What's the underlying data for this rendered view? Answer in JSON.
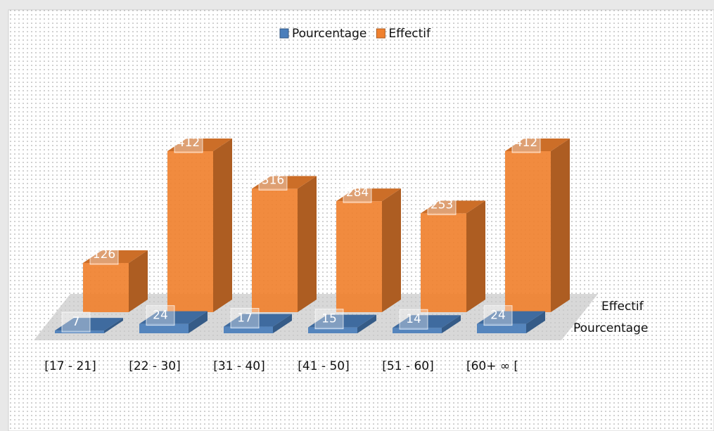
{
  "chart_data": {
    "type": "bar3d",
    "categories": [
      "[17 - 21]",
      "[22 - 30]",
      "[31 - 40]",
      "[41 - 50]",
      "[51 - 60]",
      "[60+ ∞ ["
    ],
    "series": [
      {
        "name": "Pourcentage",
        "color": "#4a7ebb",
        "values": [
          7,
          24,
          17,
          15,
          14,
          24
        ]
      },
      {
        "name": "Effectif",
        "color": "#f0812f",
        "values": [
          126,
          412,
          316,
          284,
          253,
          412
        ]
      }
    ]
  }
}
